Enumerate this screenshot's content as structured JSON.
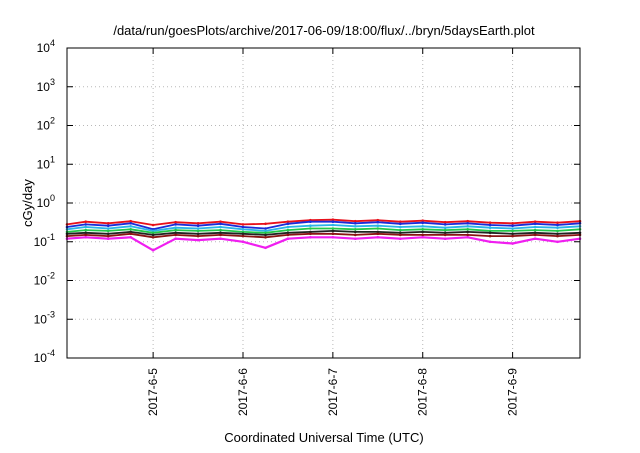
{
  "chart_data": {
    "type": "line",
    "title": "/data/run/goesPlots/archive/2017-06-09/18:00/flux/../bryn/5daysEarth.plot",
    "xlabel": "Coordinated Universal Time (UTC)",
    "ylabel": "cGy/day",
    "yscale": "log",
    "ylim": [
      0.0001,
      10000
    ],
    "xlim": [
      "2017-06-04 01:00",
      "2017-06-09 18:00"
    ],
    "grid": true,
    "legend": "none",
    "xticks": [
      {
        "x": "2017-06-05",
        "label": "2017-6-5"
      },
      {
        "x": "2017-06-06",
        "label": "2017-6-6"
      },
      {
        "x": "2017-06-07",
        "label": "2017-6-7"
      },
      {
        "x": "2017-06-08",
        "label": "2017-6-8"
      },
      {
        "x": "2017-06-09",
        "label": "2017-6-9"
      }
    ],
    "yticks": [
      {
        "value": 0.0001,
        "base": "10",
        "exp": "-4"
      },
      {
        "value": 0.001,
        "base": "10",
        "exp": "-3"
      },
      {
        "value": 0.01,
        "base": "10",
        "exp": "-2"
      },
      {
        "value": 0.1,
        "base": "10",
        "exp": "-1"
      },
      {
        "value": 1,
        "base": "10",
        "exp": "0"
      },
      {
        "value": 10,
        "base": "10",
        "exp": "1"
      },
      {
        "value": 100,
        "base": "10",
        "exp": "2"
      },
      {
        "value": 1000,
        "base": "10",
        "exp": "3"
      },
      {
        "value": 10000,
        "base": "10",
        "exp": "4"
      }
    ],
    "x": [
      "2017-06-04 01:00",
      "2017-06-04 06:00",
      "2017-06-04 12:00",
      "2017-06-04 18:00",
      "2017-06-05 00:00",
      "2017-06-05 06:00",
      "2017-06-05 12:00",
      "2017-06-05 18:00",
      "2017-06-06 00:00",
      "2017-06-06 06:00",
      "2017-06-06 12:00",
      "2017-06-06 18:00",
      "2017-06-07 00:00",
      "2017-06-07 06:00",
      "2017-06-07 12:00",
      "2017-06-07 18:00",
      "2017-06-08 00:00",
      "2017-06-08 06:00",
      "2017-06-08 12:00",
      "2017-06-08 18:00",
      "2017-06-09 00:00",
      "2017-06-09 06:00",
      "2017-06-09 12:00",
      "2017-06-09 18:00"
    ],
    "series": [
      {
        "color": "#e8101a",
        "values": [
          0.28,
          0.33,
          0.3,
          0.34,
          0.27,
          0.32,
          0.3,
          0.33,
          0.28,
          0.29,
          0.33,
          0.36,
          0.37,
          0.34,
          0.36,
          0.33,
          0.35,
          0.32,
          0.34,
          0.31,
          0.3,
          0.33,
          0.31,
          0.34
        ]
      },
      {
        "color": "#1a2cd8",
        "values": [
          0.24,
          0.28,
          0.26,
          0.3,
          0.21,
          0.28,
          0.26,
          0.29,
          0.24,
          0.22,
          0.29,
          0.33,
          0.33,
          0.3,
          0.32,
          0.29,
          0.31,
          0.28,
          0.3,
          0.27,
          0.26,
          0.29,
          0.27,
          0.3
        ]
      },
      {
        "color": "#2ab4e8",
        "values": [
          0.21,
          0.24,
          0.22,
          0.25,
          0.19,
          0.23,
          0.22,
          0.24,
          0.21,
          0.19,
          0.24,
          0.26,
          0.27,
          0.25,
          0.26,
          0.24,
          0.25,
          0.23,
          0.25,
          0.23,
          0.22,
          0.24,
          0.23,
          0.25
        ]
      },
      {
        "color": "#22c84a",
        "values": [
          0.18,
          0.2,
          0.19,
          0.21,
          0.17,
          0.2,
          0.19,
          0.2,
          0.18,
          0.17,
          0.2,
          0.22,
          0.22,
          0.21,
          0.22,
          0.2,
          0.21,
          0.2,
          0.21,
          0.19,
          0.19,
          0.2,
          0.19,
          0.21
        ]
      },
      {
        "color": "#222222",
        "values": [
          0.16,
          0.17,
          0.16,
          0.18,
          0.15,
          0.17,
          0.16,
          0.17,
          0.16,
          0.15,
          0.17,
          0.18,
          0.19,
          0.18,
          0.18,
          0.17,
          0.18,
          0.17,
          0.18,
          0.17,
          0.16,
          0.17,
          0.16,
          0.17
        ]
      },
      {
        "color": "#8a1414",
        "values": [
          0.14,
          0.15,
          0.14,
          0.16,
          0.13,
          0.15,
          0.14,
          0.15,
          0.14,
          0.13,
          0.15,
          0.16,
          0.16,
          0.15,
          0.16,
          0.15,
          0.15,
          0.15,
          0.15,
          0.14,
          0.14,
          0.15,
          0.14,
          0.15
        ]
      },
      {
        "color": "#f01ef0",
        "values": [
          0.12,
          0.13,
          0.12,
          0.13,
          0.06,
          0.12,
          0.11,
          0.12,
          0.1,
          0.07,
          0.12,
          0.13,
          0.13,
          0.12,
          0.13,
          0.12,
          0.13,
          0.12,
          0.13,
          0.1,
          0.09,
          0.12,
          0.1,
          0.12
        ]
      }
    ]
  }
}
